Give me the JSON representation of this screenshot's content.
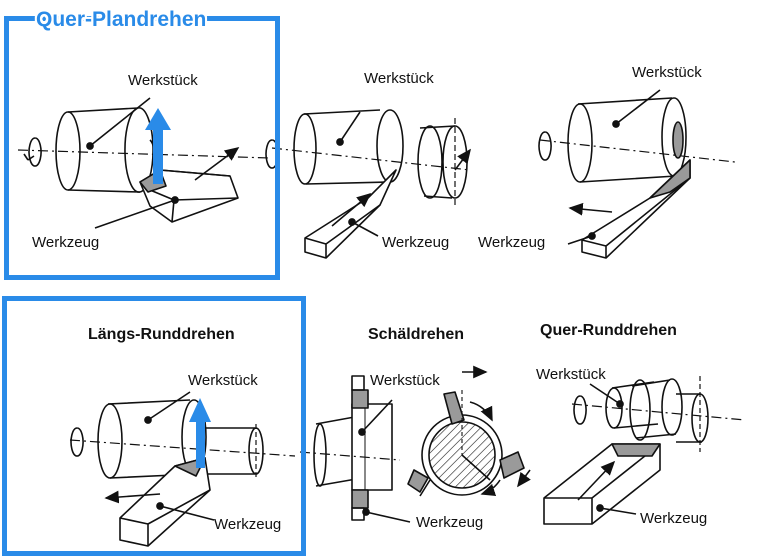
{
  "panels": {
    "quer_plandrehen": {
      "title": "Quer-Plandrehen",
      "workpiece": "Werkstück",
      "tool": "Werkzeug"
    },
    "abstechen": {
      "workpiece": "Werkstück",
      "tool": "Werkzeug"
    },
    "innen": {
      "workpiece": "Werkstück",
      "tool": "Werkzeug"
    },
    "laengs_runddrehen": {
      "title": "Längs-Runddrehen",
      "workpiece": "Werkstück",
      "tool": "Werkzeug"
    },
    "schaeldrehen": {
      "title": "Schäldrehen",
      "workpiece": "Werkstück",
      "tool": "Werkzeug"
    },
    "quer_runddrehen": {
      "title": "Quer-Runddrehen",
      "workpiece": "Werkstück",
      "tool": "Werkzeug"
    }
  },
  "colors": {
    "highlight": "#2a8be8",
    "tool_shade": "#9a9a9a"
  }
}
